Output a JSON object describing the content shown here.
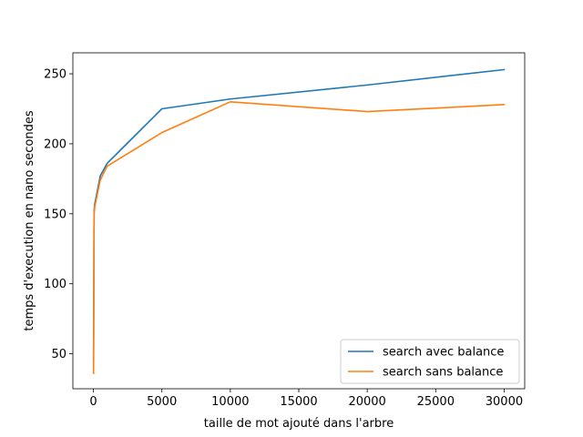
{
  "chart_data": {
    "type": "line",
    "title": "",
    "xlabel": "taille de mot ajouté dans l'arbre",
    "ylabel": "temps d'execution en nano secondes",
    "xlim": [
      -1500,
      31500
    ],
    "ylim": [
      25,
      265
    ],
    "xticks": [
      0,
      5000,
      10000,
      15000,
      20000,
      25000,
      30000
    ],
    "xtick_labels": [
      "0",
      "5000",
      "10000",
      "15000",
      "20000",
      "25000",
      "30000"
    ],
    "yticks": [
      50,
      100,
      150,
      200,
      250
    ],
    "ytick_labels": [
      "50",
      "100",
      "150",
      "200",
      "250"
    ],
    "grid": false,
    "legend_position": "lower-right",
    "series": [
      {
        "name": "search avec balance",
        "color": "#1f77b4",
        "x": [
          10,
          50,
          100,
          500,
          1000,
          5000,
          10000,
          20000,
          30000
        ],
        "y": [
          45,
          152,
          157,
          177,
          186,
          225,
          232,
          242,
          253
        ]
      },
      {
        "name": "search sans balance",
        "color": "#ff7f0e",
        "x": [
          10,
          50,
          100,
          500,
          1000,
          5000,
          10000,
          20000,
          30000
        ],
        "y": [
          36,
          150,
          155,
          174,
          184,
          208,
          230,
          223,
          228
        ]
      }
    ]
  }
}
